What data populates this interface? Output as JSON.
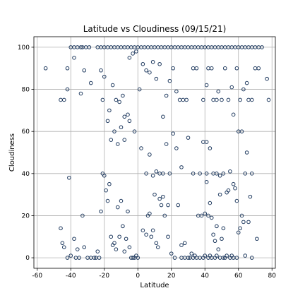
{
  "chart_data": {
    "type": "scatter",
    "title": "Latitude vs Cloudiness (09/15/21)",
    "xlabel": "Latitude",
    "ylabel": "Cloudiness",
    "xlim": [
      -62,
      82
    ],
    "ylim": [
      -5,
      105
    ],
    "xticks": [
      -60,
      -40,
      -20,
      0,
      20,
      40,
      60,
      80
    ],
    "yticks": [
      0,
      20,
      40,
      60,
      80,
      100
    ],
    "grid": true,
    "marker_color": "#1f3a5f",
    "points": [
      [
        -55,
        90
      ],
      [
        -46,
        75
      ],
      [
        -44,
        75
      ],
      [
        -42,
        80
      ],
      [
        -41,
        38
      ],
      [
        -42,
        90
      ],
      [
        -40,
        100
      ],
      [
        -38,
        100
      ],
      [
        -36,
        100
      ],
      [
        -34,
        100
      ],
      [
        -33,
        100
      ],
      [
        -31,
        100
      ],
      [
        -29,
        100
      ],
      [
        -24,
        100
      ],
      [
        -22,
        100
      ],
      [
        -20,
        100
      ],
      [
        -18,
        100
      ],
      [
        -16,
        100
      ],
      [
        -14,
        100
      ],
      [
        -12,
        100
      ],
      [
        -10,
        100
      ],
      [
        -8,
        100
      ],
      [
        -6,
        100
      ],
      [
        -4,
        100
      ],
      [
        -2,
        100
      ],
      [
        0,
        100
      ],
      [
        2,
        100
      ],
      [
        4,
        100
      ],
      [
        6,
        100
      ],
      [
        8,
        100
      ],
      [
        10,
        100
      ],
      [
        12,
        100
      ],
      [
        14,
        100
      ],
      [
        16,
        100
      ],
      [
        18,
        100
      ],
      [
        20,
        100
      ],
      [
        22,
        100
      ],
      [
        24,
        100
      ],
      [
        26,
        100
      ],
      [
        28,
        100
      ],
      [
        30,
        100
      ],
      [
        32,
        100
      ],
      [
        34,
        100
      ],
      [
        36,
        100
      ],
      [
        38,
        100
      ],
      [
        40,
        100
      ],
      [
        42,
        100
      ],
      [
        44,
        100
      ],
      [
        46,
        100
      ],
      [
        48,
        100
      ],
      [
        50,
        100
      ],
      [
        52,
        100
      ],
      [
        54,
        100
      ],
      [
        56,
        100
      ],
      [
        58,
        100
      ],
      [
        60,
        100
      ],
      [
        62,
        100
      ],
      [
        64,
        100
      ],
      [
        66,
        100
      ],
      [
        68,
        100
      ],
      [
        70,
        100
      ],
      [
        72,
        100
      ],
      [
        -38,
        95
      ],
      [
        -32,
        89
      ],
      [
        -28,
        83
      ],
      [
        -22,
        89
      ],
      [
        -20,
        86
      ],
      [
        -17,
        70
      ],
      [
        -15,
        82
      ],
      [
        -13,
        75
      ],
      [
        -11,
        74
      ],
      [
        -9,
        77
      ],
      [
        -8,
        67
      ],
      [
        -6,
        68
      ],
      [
        -5,
        95
      ],
      [
        -3,
        97
      ],
      [
        -1,
        98
      ],
      [
        1,
        80
      ],
      [
        3,
        92
      ],
      [
        5,
        89
      ],
      [
        7,
        88
      ],
      [
        9,
        93
      ],
      [
        11,
        85
      ],
      [
        13,
        92
      ],
      [
        15,
        67
      ],
      [
        17,
        77
      ],
      [
        19,
        84
      ],
      [
        21,
        90
      ],
      [
        23,
        79
      ],
      [
        25,
        75
      ],
      [
        27,
        75
      ],
      [
        29,
        75
      ],
      [
        33,
        90
      ],
      [
        35,
        90
      ],
      [
        39,
        75
      ],
      [
        41,
        82
      ],
      [
        42,
        90
      ],
      [
        44,
        90
      ],
      [
        45,
        75
      ],
      [
        47,
        75
      ],
      [
        48,
        79
      ],
      [
        50,
        75
      ],
      [
        52,
        90
      ],
      [
        54,
        75
      ],
      [
        56,
        81
      ],
      [
        57,
        68
      ],
      [
        59,
        90
      ],
      [
        61,
        75
      ],
      [
        63,
        80
      ],
      [
        65,
        83
      ],
      [
        66,
        75
      ],
      [
        68,
        75
      ],
      [
        70,
        90
      ],
      [
        72,
        90
      ],
      [
        74,
        100
      ],
      [
        77,
        85
      ],
      [
        78,
        75
      ],
      [
        -34,
        78
      ],
      [
        -21,
        75
      ],
      [
        -18,
        65
      ],
      [
        -16,
        56
      ],
      [
        -14,
        60
      ],
      [
        -12,
        54
      ],
      [
        -10,
        62
      ],
      [
        -8,
        56
      ],
      [
        -5,
        65
      ],
      [
        -2,
        60
      ],
      [
        2,
        52
      ],
      [
        5,
        40
      ],
      [
        7,
        49
      ],
      [
        9,
        39
      ],
      [
        11,
        41
      ],
      [
        13,
        40
      ],
      [
        15,
        40
      ],
      [
        17,
        54
      ],
      [
        19,
        40
      ],
      [
        21,
        59
      ],
      [
        23,
        52
      ],
      [
        26,
        43
      ],
      [
        30,
        57
      ],
      [
        33,
        40
      ],
      [
        37,
        40
      ],
      [
        39,
        55
      ],
      [
        41,
        55
      ],
      [
        41,
        40
      ],
      [
        43,
        52
      ],
      [
        45,
        40
      ],
      [
        47,
        40
      ],
      [
        49,
        39
      ],
      [
        51,
        40
      ],
      [
        53,
        31
      ],
      [
        55,
        41
      ],
      [
        57,
        35
      ],
      [
        59,
        27
      ],
      [
        60,
        60
      ],
      [
        62,
        60
      ],
      [
        64,
        40
      ],
      [
        65,
        50
      ],
      [
        67,
        29
      ],
      [
        68,
        40
      ],
      [
        -46,
        14
      ],
      [
        -45,
        7
      ],
      [
        -44,
        5
      ],
      [
        -38,
        9
      ],
      [
        -36,
        4
      ],
      [
        -35,
        0
      ],
      [
        -33,
        20
      ],
      [
        -32,
        5
      ],
      [
        -30,
        0
      ],
      [
        -28,
        0
      ],
      [
        -26,
        0
      ],
      [
        -24,
        3
      ],
      [
        -22,
        22
      ],
      [
        -21,
        40
      ],
      [
        -20,
        39
      ],
      [
        -19,
        32
      ],
      [
        -18,
        27
      ],
      [
        -17,
        35
      ],
      [
        -16,
        10
      ],
      [
        -15,
        6
      ],
      [
        -14,
        7
      ],
      [
        -13,
        4
      ],
      [
        -12,
        24
      ],
      [
        -11,
        10
      ],
      [
        -10,
        27
      ],
      [
        -9,
        15
      ],
      [
        -8,
        3
      ],
      [
        -7,
        9
      ],
      [
        -6,
        22
      ],
      [
        -5,
        5
      ],
      [
        -4,
        0
      ],
      [
        -3,
        0
      ],
      [
        -2,
        0
      ],
      [
        0,
        0
      ],
      [
        3,
        13
      ],
      [
        5,
        11
      ],
      [
        6,
        20
      ],
      [
        7,
        21
      ],
      [
        8,
        10
      ],
      [
        9,
        13
      ],
      [
        10,
        30
      ],
      [
        11,
        7
      ],
      [
        12,
        5
      ],
      [
        13,
        28
      ],
      [
        14,
        25
      ],
      [
        15,
        29
      ],
      [
        16,
        20
      ],
      [
        18,
        10
      ],
      [
        20,
        2
      ],
      [
        22,
        0
      ],
      [
        24,
        25
      ],
      [
        26,
        6
      ],
      [
        28,
        7
      ],
      [
        30,
        0
      ],
      [
        32,
        2
      ],
      [
        34,
        1
      ],
      [
        36,
        20
      ],
      [
        38,
        20
      ],
      [
        40,
        21
      ],
      [
        41,
        36
      ],
      [
        42,
        20
      ],
      [
        43,
        26
      ],
      [
        44,
        19
      ],
      [
        45,
        11
      ],
      [
        46,
        8
      ],
      [
        47,
        15
      ],
      [
        48,
        4
      ],
      [
        49,
        30
      ],
      [
        50,
        9
      ],
      [
        51,
        14
      ],
      [
        52,
        0
      ],
      [
        53,
        1
      ],
      [
        54,
        32
      ],
      [
        56,
        1
      ],
      [
        58,
        33
      ],
      [
        60,
        12
      ],
      [
        61,
        14
      ],
      [
        62,
        20
      ],
      [
        63,
        17
      ],
      [
        64,
        1
      ],
      [
        66,
        17
      ],
      [
        68,
        0
      ],
      [
        71,
        9
      ],
      [
        -42,
        0
      ],
      [
        -40,
        1
      ],
      [
        -37,
        0
      ],
      [
        -25,
        0
      ],
      [
        -23,
        0
      ],
      [
        -1,
        1
      ],
      [
        18,
        25
      ],
      [
        26,
        0
      ],
      [
        28,
        0
      ],
      [
        31,
        0
      ],
      [
        33,
        0
      ],
      [
        35,
        0
      ],
      [
        37,
        0
      ],
      [
        39,
        0
      ],
      [
        40,
        1
      ],
      [
        42,
        0
      ],
      [
        43,
        1
      ],
      [
        44,
        0
      ],
      [
        46,
        0
      ],
      [
        47,
        1
      ],
      [
        49,
        0
      ],
      [
        51,
        0
      ],
      [
        55,
        0
      ],
      [
        57,
        0
      ],
      [
        59,
        0
      ]
    ]
  }
}
